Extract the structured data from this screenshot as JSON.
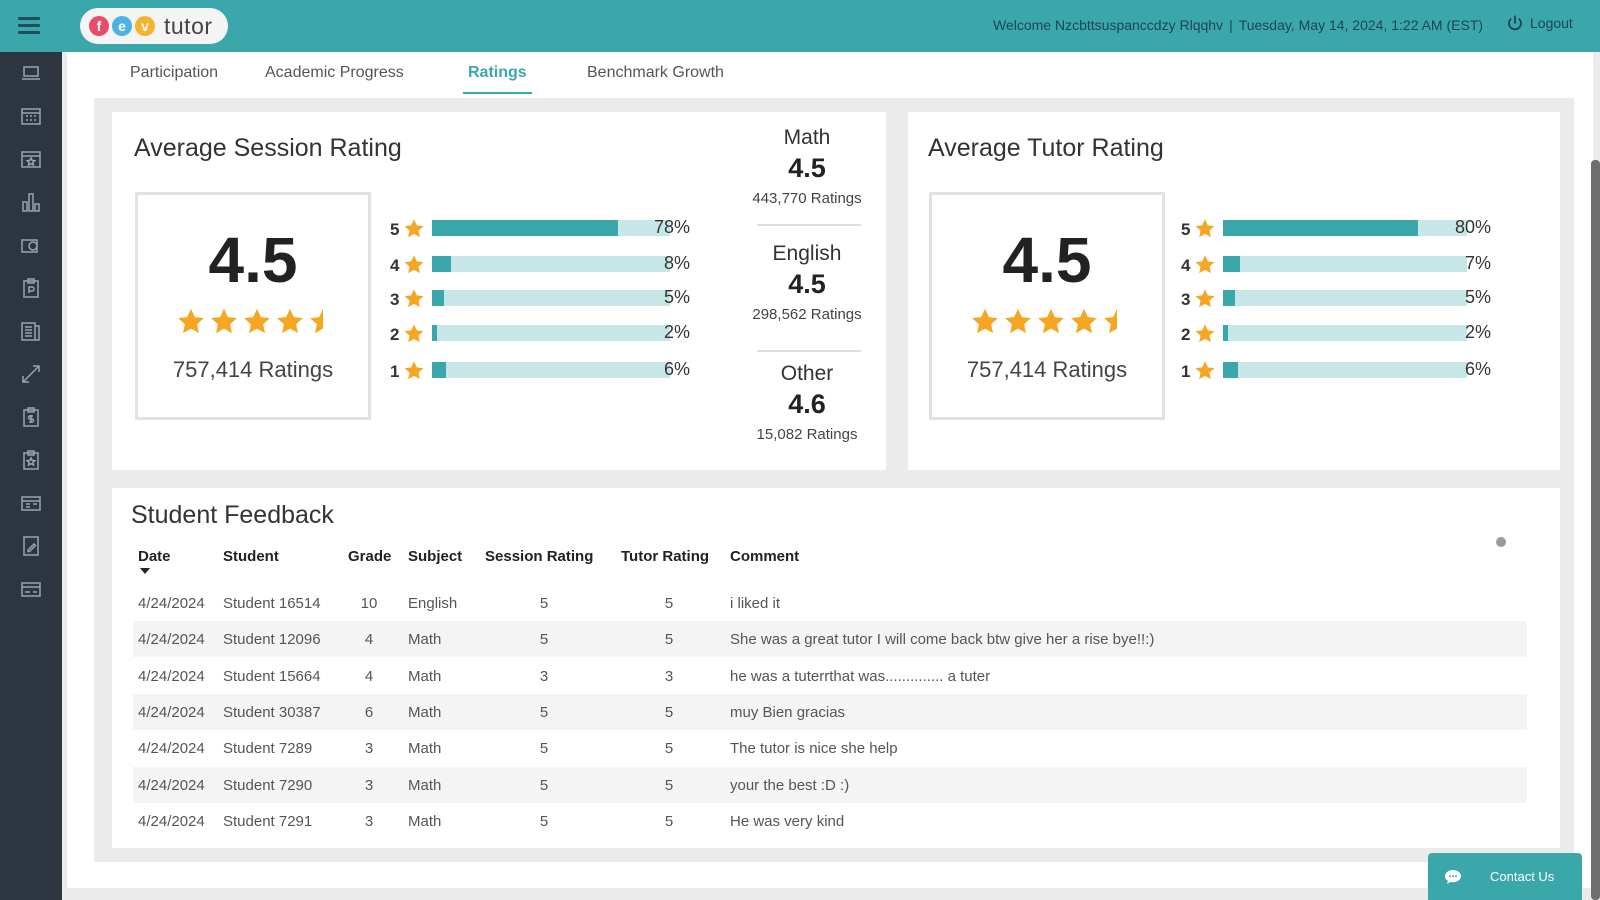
{
  "header": {
    "logo_letters": [
      "f",
      "e",
      "v"
    ],
    "logo_colors": [
      "#e94b6b",
      "#4bb3e2",
      "#f5b32f"
    ],
    "logo_word": "tutor",
    "welcome": "Welcome Nzcbttsuspanccdzy Rlqqhv",
    "separator": "|",
    "datetime": "Tuesday, May 14, 2024, 1:22 AM (EST)",
    "logout_label": "Logout"
  },
  "sidebar": {
    "icons": [
      "laptop-icon",
      "calendar-grid-icon",
      "calendar-star-icon",
      "bar-chart-icon",
      "camera-icon",
      "clipboard-p-icon",
      "book-list-icon",
      "resize-arrow-icon",
      "clipboard-dollar-icon",
      "clipboard-star-icon",
      "store-icon",
      "edit-note-icon",
      "card-icon"
    ]
  },
  "tabs": [
    {
      "label": "Participation",
      "active": false
    },
    {
      "label": "Academic Progress",
      "active": false
    },
    {
      "label": "Ratings",
      "active": true
    },
    {
      "label": "Benchmark Growth",
      "active": false
    }
  ],
  "session_rating": {
    "title": "Average Session Rating",
    "average": "4.5",
    "stars": 4.5,
    "count_label": "757,414 Ratings",
    "distribution": [
      {
        "star": "5",
        "pct": "78%",
        "value": 78
      },
      {
        "star": "4",
        "pct": "8%",
        "value": 8
      },
      {
        "star": "3",
        "pct": "5%",
        "value": 5
      },
      {
        "star": "2",
        "pct": "2%",
        "value": 2
      },
      {
        "star": "1",
        "pct": "6%",
        "value": 6
      }
    ],
    "subjects": [
      {
        "name": "Math",
        "value": "4.5",
        "ratings": "443,770 Ratings"
      },
      {
        "name": "English",
        "value": "4.5",
        "ratings": "298,562 Ratings"
      },
      {
        "name": "Other",
        "value": "4.6",
        "ratings": "15,082 Ratings"
      }
    ]
  },
  "tutor_rating": {
    "title": "Average Tutor Rating",
    "average": "4.5",
    "stars": 4.5,
    "count_label": "757,414 Ratings",
    "distribution": [
      {
        "star": "5",
        "pct": "80%",
        "value": 80
      },
      {
        "star": "4",
        "pct": "7%",
        "value": 7
      },
      {
        "star": "3",
        "pct": "5%",
        "value": 5
      },
      {
        "star": "2",
        "pct": "2%",
        "value": 2
      },
      {
        "star": "1",
        "pct": "6%",
        "value": 6
      }
    ]
  },
  "feedback": {
    "title": "Student Feedback",
    "columns": [
      "Date",
      "Student",
      "Grade",
      "Subject",
      "Session Rating",
      "Tutor Rating",
      "Comment"
    ],
    "rows": [
      [
        "4/24/2024",
        "Student 16514",
        "10",
        "English",
        "5",
        "5",
        "i liked it"
      ],
      [
        "4/24/2024",
        "Student 12096",
        "4",
        "Math",
        "5",
        "5",
        "She was a great tutor I will come back btw give her a rise bye!!:)"
      ],
      [
        "4/24/2024",
        "Student 15664",
        "4",
        "Math",
        "3",
        "3",
        "he was a tuterrthat was.............. a tuter"
      ],
      [
        "4/24/2024",
        "Student 30387",
        "6",
        "Math",
        "5",
        "5",
        "muy Bien gracias"
      ],
      [
        "4/24/2024",
        "Student 7289",
        "3",
        "Math",
        "5",
        "5",
        "The tutor is nice she help"
      ],
      [
        "4/24/2024",
        "Student 7290",
        "3",
        "Math",
        "5",
        "5",
        "your the best :D :)"
      ],
      [
        "4/24/2024",
        "Student 7291",
        "3",
        "Math",
        "5",
        "5",
        "He was very kind"
      ]
    ]
  },
  "contact": {
    "label": "Contact Us"
  },
  "colors": {
    "accent": "#3aa8ab",
    "track": "#c6e6e8",
    "star": "#f5a623",
    "sidebar": "#2d3540"
  }
}
